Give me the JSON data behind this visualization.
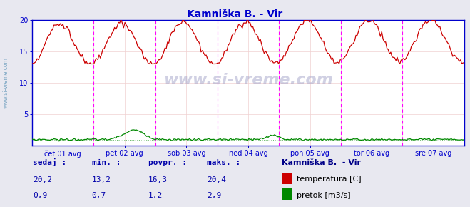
{
  "title": "Kamniška B. - Vir",
  "title_color": "#0000cc",
  "title_fontsize": 10,
  "bg_color": "#e8e8f0",
  "plot_bg_color": "#ffffff",
  "x_labels": [
    "čet 01 avg",
    "pet 02 avg",
    "sob 03 avg",
    "ned 04 avg",
    "pon 05 avg",
    "tor 06 avg",
    "sre 07 avg"
  ],
  "ylim": [
    0,
    20
  ],
  "grid_color": "#f0d0d0",
  "vline_color": "#ff00ff",
  "hline_dashed_color": "#ff8888",
  "axis_color": "#0000cc",
  "tick_color": "#0000cc",
  "watermark": "www.si-vreme.com",
  "watermark_color": "#aaaacc",
  "legend_title": "Kamniška B.  - Vir",
  "legend_title_color": "#000088",
  "legend_items": [
    "temperatura [C]",
    "pretok [m3/s]"
  ],
  "legend_colors": [
    "#cc0000",
    "#008800"
  ],
  "stats_labels": [
    "sedaj :",
    "min. :",
    "povpr. :",
    "maks. :"
  ],
  "stats_color": "#0000aa",
  "stats_values_temp": [
    "20,2",
    "13,2",
    "16,3",
    "20,4"
  ],
  "stats_values_pretok": [
    "0,9",
    "0,7",
    "1,2",
    "2,9"
  ],
  "n_points": 336,
  "temp_color": "#cc0000",
  "pretok_color": "#008800",
  "sidebar_color": "#6699bb"
}
